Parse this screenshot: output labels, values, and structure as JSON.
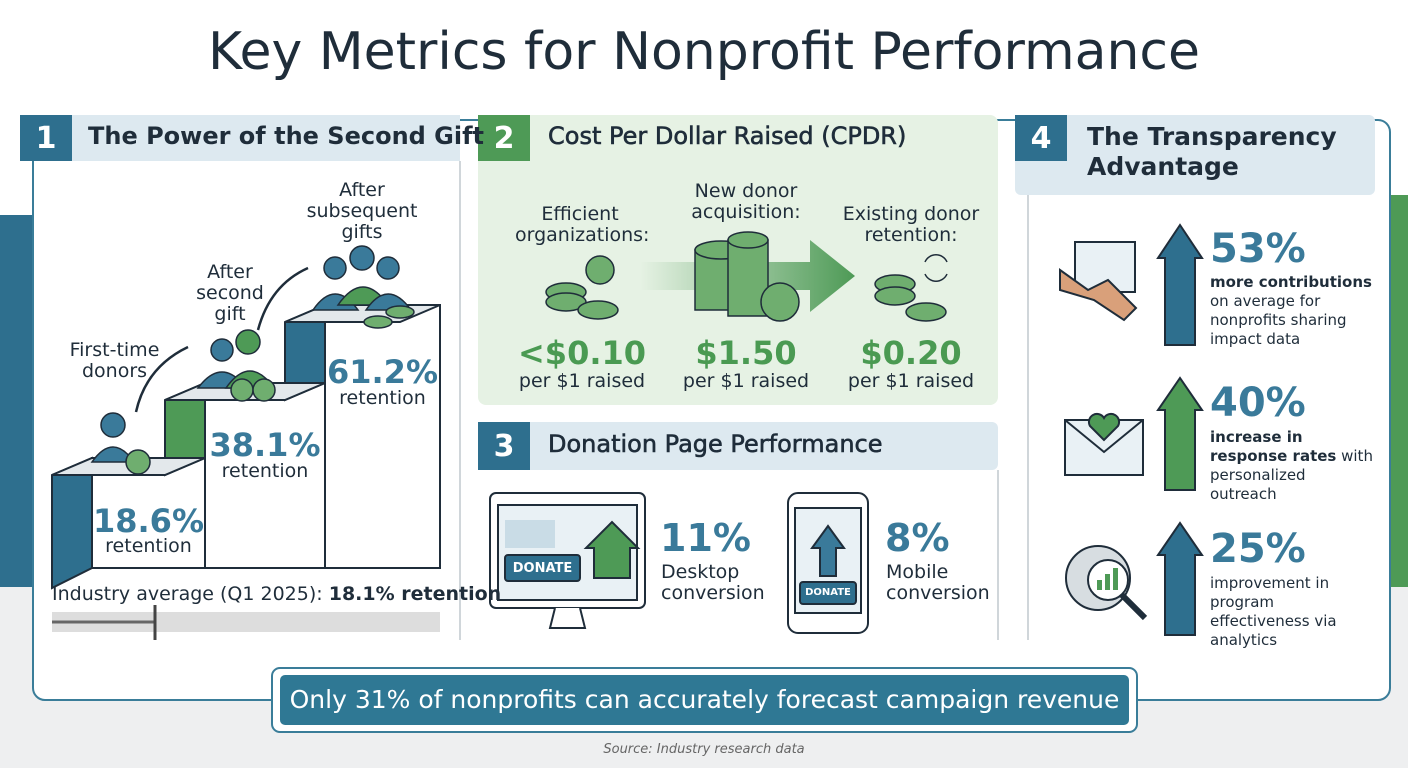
{
  "title": "Key Metrics for Nonprofit Performance",
  "panels": {
    "second_gift": {
      "number": "1",
      "title": "The Power of the Second Gift",
      "steps": [
        {
          "label": "First-time donors",
          "value": "18.6%",
          "caption": "retention"
        },
        {
          "label": "After second gift",
          "value": "38.1%",
          "caption": "retention"
        },
        {
          "label": "After subsequent gifts",
          "value": "61.2%",
          "caption": "retention"
        }
      ],
      "benchmark": {
        "label": "Industry average (Q1 2025):",
        "value": "18.1% retention"
      }
    },
    "cpdr": {
      "number": "2",
      "title": "Cost Per Dollar Raised (CPDR)",
      "items": [
        {
          "label": "Efficient organizations:",
          "value": "<$0.10",
          "caption": "per $1 raised"
        },
        {
          "label": "New donor acquisition:",
          "value": "$1.50",
          "caption": "per $1 raised"
        },
        {
          "label": "Existing donor retention:",
          "value": "$0.20",
          "caption": "per $1 raised"
        }
      ]
    },
    "donation_page": {
      "number": "3",
      "title": "Donation Page Performance",
      "button": "DONATE",
      "items": [
        {
          "value": "11%",
          "label": "Desktop conversion"
        },
        {
          "value": "8%",
          "label": "Mobile conversion"
        }
      ]
    },
    "transparency": {
      "number": "4",
      "title": "The Transparency Advantage",
      "items": [
        {
          "value": "53%",
          "highlight": "more contributions",
          "text": "on average for nonprofits sharing impact data"
        },
        {
          "value": "40%",
          "highlight": "increase in response rates",
          "text": "with personalized outreach"
        },
        {
          "value": "25%",
          "highlight": "",
          "text": "improvement in program effectiveness via analytics"
        }
      ]
    }
  },
  "callout": "Only 31% of nonprofits can accurately forecast campaign revenue",
  "source": "Source: Industry research data"
}
